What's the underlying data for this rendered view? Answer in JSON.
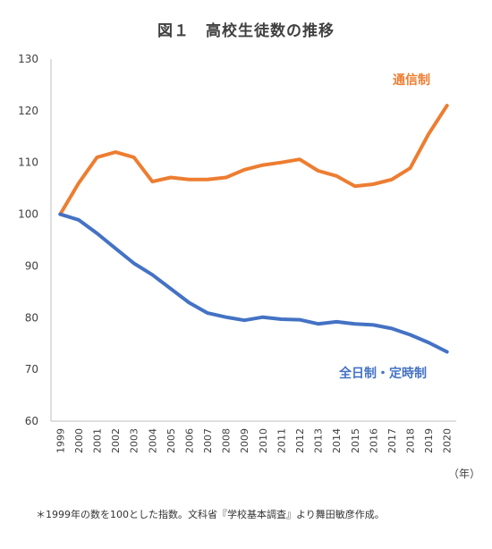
{
  "title": "図１　高校生徒数の推移",
  "footnote": "＊1999年の数を100とした指数。文科省『学校基本調査』より舞田敏彦作成。",
  "chart_data": {
    "type": "line",
    "title": "図１　高校生徒数の推移",
    "x_unit_label": "（年）",
    "x": [
      "1999",
      "2000",
      "2001",
      "2002",
      "2003",
      "2004",
      "2005",
      "2006",
      "2007",
      "2008",
      "2009",
      "2010",
      "2011",
      "2012",
      "2013",
      "2014",
      "2015",
      "2016",
      "2017",
      "2018",
      "2019",
      "2020"
    ],
    "ylim": [
      60,
      130
    ],
    "yticks": [
      60,
      70,
      80,
      90,
      100,
      110,
      120,
      130
    ],
    "grid": false,
    "series": [
      {
        "name": "通信制",
        "color": "#ED7D31",
        "values": [
          100,
          106,
          111,
          112,
          111,
          106.3,
          107.1,
          106.7,
          106.7,
          107.1,
          108.6,
          109.5,
          110,
          110.6,
          108.4,
          107.4,
          105.4,
          105.8,
          106.7,
          108.9,
          115.5,
          121
        ]
      },
      {
        "name": "全日制・定時制",
        "color": "#4472C4",
        "values": [
          100,
          98.9,
          96.3,
          93.4,
          90.5,
          88.3,
          85.6,
          82.9,
          80.9,
          80.1,
          79.5,
          80.1,
          79.7,
          79.6,
          78.8,
          79.2,
          78.8,
          78.6,
          77.9,
          76.7,
          75.2,
          73.4
        ]
      }
    ]
  }
}
